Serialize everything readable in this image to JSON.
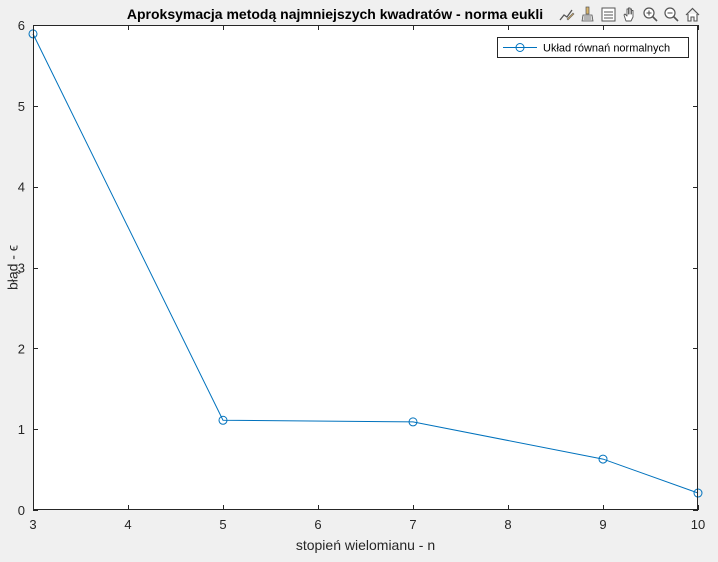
{
  "window": {
    "background": "#f0f0f0",
    "axes_background": "#ffffff"
  },
  "toolbar": {
    "buttons": [
      {
        "icon": "edit-plot-icon"
      },
      {
        "icon": "brush-icon"
      },
      {
        "icon": "legend-icon"
      },
      {
        "icon": "pan-icon"
      },
      {
        "icon": "zoom-in-icon"
      },
      {
        "icon": "zoom-out-icon"
      },
      {
        "icon": "home-icon"
      }
    ]
  },
  "chart_data": {
    "type": "line",
    "title": "Aproksymacja metodą najmniejszych kwadratów - norma eukli",
    "xlabel": "stopień wielomianu - n",
    "ylabel": "błąd - ϵ",
    "x": [
      3,
      5,
      7,
      9,
      10
    ],
    "series": [
      {
        "name": "Układ równań normalnych",
        "values": [
          5.89,
          1.11,
          1.09,
          0.63,
          0.21
        ],
        "color": "#0072bd",
        "marker": "circle"
      }
    ],
    "xlim": [
      3,
      10
    ],
    "ylim": [
      0,
      6
    ],
    "xticks": [
      3,
      4,
      5,
      6,
      7,
      8,
      9,
      10
    ],
    "yticks": [
      0,
      1,
      2,
      3,
      4,
      5,
      6
    ],
    "grid": false,
    "legend_position": "top-right"
  }
}
